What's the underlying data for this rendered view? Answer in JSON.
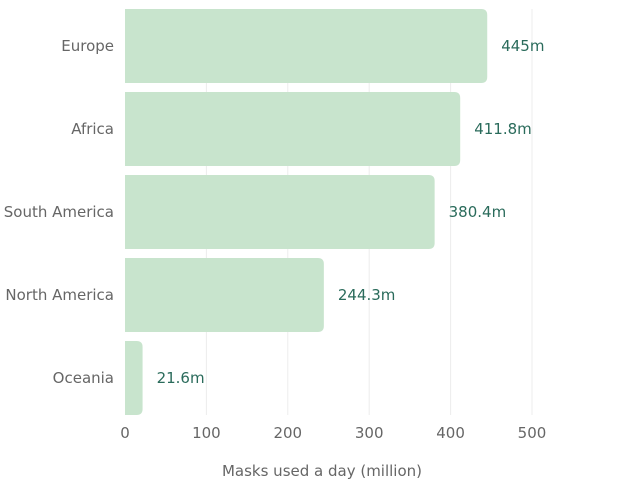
{
  "chart_data": {
    "type": "bar",
    "orientation": "horizontal",
    "categories": [
      "Europe",
      "Africa",
      "South America",
      "North America",
      "Oceania"
    ],
    "values": [
      445,
      411.8,
      380.4,
      244.3,
      21.6
    ],
    "value_labels": [
      "445m",
      "411.8m",
      "380.4m",
      "244.3m",
      "21.6m"
    ],
    "xlabel": "Masks used a day (million)",
    "xticks": [
      "0",
      "100",
      "200",
      "300",
      "400",
      "500"
    ],
    "xlim": [
      0,
      500
    ],
    "grid": true,
    "legend": "none"
  },
  "colors": {
    "bar": "#c8e4cd",
    "value_label": "#2a6b5b"
  }
}
